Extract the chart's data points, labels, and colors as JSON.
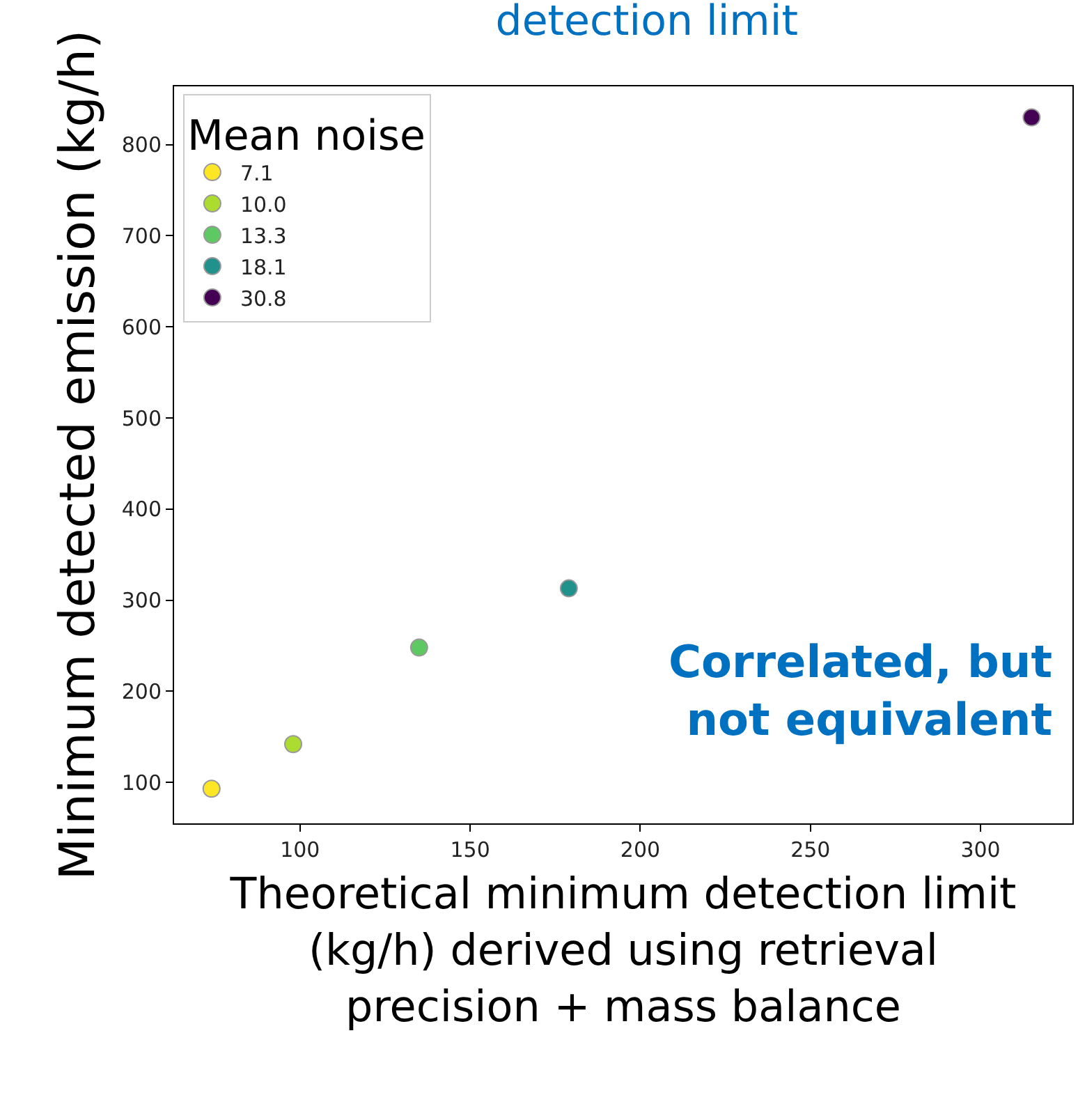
{
  "chart_data": {
    "type": "scatter",
    "title": "detection limit",
    "xlabel": "Theoretical minimum detection limit (kg/h) derived using retrieval precision + mass balance",
    "ylabel": "Minimum detected emission (kg/h)",
    "legend_title": "Mean noise",
    "legend": "top left",
    "grid": false,
    "marker": "circle",
    "xlim": [
      63,
      327
    ],
    "xticks": [
      100,
      150,
      200,
      250,
      300
    ],
    "ylim": [
      55,
      864
    ],
    "yticks": [
      100,
      200,
      300,
      400,
      500,
      600,
      700,
      800
    ],
    "series": [
      {
        "name": "7.1",
        "color": "#fde725",
        "x": [
          74
        ],
        "values": [
          93
        ]
      },
      {
        "name": "10.0",
        "color": "#addc30",
        "x": [
          98
        ],
        "values": [
          142
        ]
      },
      {
        "name": "13.3",
        "color": "#5ec962",
        "x": [
          135
        ],
        "values": [
          248
        ]
      },
      {
        "name": "18.1",
        "color": "#21918c",
        "x": [
          179
        ],
        "values": [
          313
        ]
      },
      {
        "name": "30.8",
        "color": "#440154",
        "x": [
          315
        ],
        "values": [
          830
        ]
      }
    ],
    "annotations": [
      "Correlated, but\nnot equivalent"
    ]
  }
}
